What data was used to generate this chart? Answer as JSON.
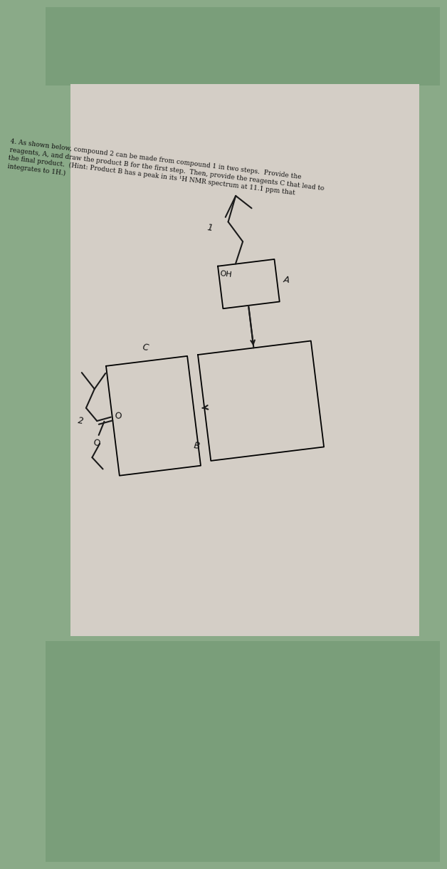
{
  "bg_outer_top": "#7a9e82",
  "bg_outer_bottom": "#8ab89a",
  "bg_paper": "#d6d0c8",
  "title": "4. As shown below, compound 2 can be made from compound 1 in two steps.  Provide the\nreagents, A, and draw the product B for the first step.  Then, provide the reagents C that lead to\nthe final product.  (Hint: Product B has a peak in its ¹H NMR spectrum at 11.1 ppm that\nintegrates to 1H.)",
  "bond_color": "#1a1a1a",
  "text_color": "#111111",
  "paper_color": "#d4cec6",
  "outer_color_top": "#7a9f82",
  "outer_color_bot": "#88b490"
}
